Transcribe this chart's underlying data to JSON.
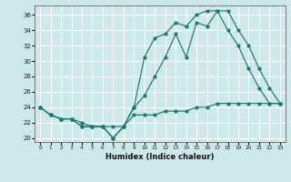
{
  "xlabel": "Humidex (Indice chaleur)",
  "bg_color": "#cce8e8",
  "grid_color": "#ffffff",
  "line_color": "#1a7a6e",
  "xlim": [
    -0.5,
    23.5
  ],
  "ylim": [
    19.5,
    37.2
  ],
  "yticks": [
    20,
    22,
    24,
    26,
    28,
    30,
    32,
    34,
    36
  ],
  "xticks": [
    0,
    1,
    2,
    3,
    4,
    5,
    6,
    7,
    8,
    9,
    10,
    11,
    12,
    13,
    14,
    15,
    16,
    17,
    18,
    19,
    20,
    21,
    22,
    23
  ],
  "line1_x": [
    0,
    1,
    2,
    3,
    4,
    5,
    6,
    7,
    8,
    9,
    10,
    11,
    12,
    13,
    14,
    15,
    16,
    17,
    18,
    19,
    20,
    21,
    22,
    23
  ],
  "line1_y": [
    24.0,
    23.0,
    22.5,
    22.5,
    22.0,
    21.5,
    21.5,
    21.5,
    21.5,
    23.0,
    23.0,
    23.0,
    23.5,
    23.5,
    23.5,
    24.0,
    24.0,
    24.5,
    24.5,
    24.5,
    24.5,
    24.5,
    24.5,
    24.5
  ],
  "line2_x": [
    0,
    1,
    2,
    3,
    4,
    5,
    6,
    7,
    8,
    9,
    10,
    11,
    12,
    13,
    14,
    15,
    16,
    17,
    18,
    19,
    20,
    21,
    22,
    23
  ],
  "line2_y": [
    24.0,
    23.0,
    22.5,
    22.5,
    21.5,
    21.5,
    21.5,
    20.0,
    21.5,
    24.0,
    25.5,
    28.0,
    30.5,
    33.5,
    30.5,
    35.0,
    34.5,
    36.5,
    36.5,
    34.0,
    32.0,
    29.0,
    26.5,
    24.5
  ],
  "line3_x": [
    0,
    1,
    2,
    3,
    4,
    5,
    6,
    7,
    8,
    9,
    10,
    11,
    12,
    13,
    14,
    15,
    16,
    17,
    18,
    19,
    20,
    21,
    22,
    23
  ],
  "line3_y": [
    24.0,
    23.0,
    22.5,
    22.5,
    21.5,
    21.5,
    21.5,
    20.0,
    21.5,
    24.0,
    30.5,
    33.0,
    33.5,
    35.0,
    34.5,
    36.0,
    36.5,
    36.5,
    34.0,
    32.0,
    29.0,
    26.5,
    24.5,
    24.5
  ]
}
